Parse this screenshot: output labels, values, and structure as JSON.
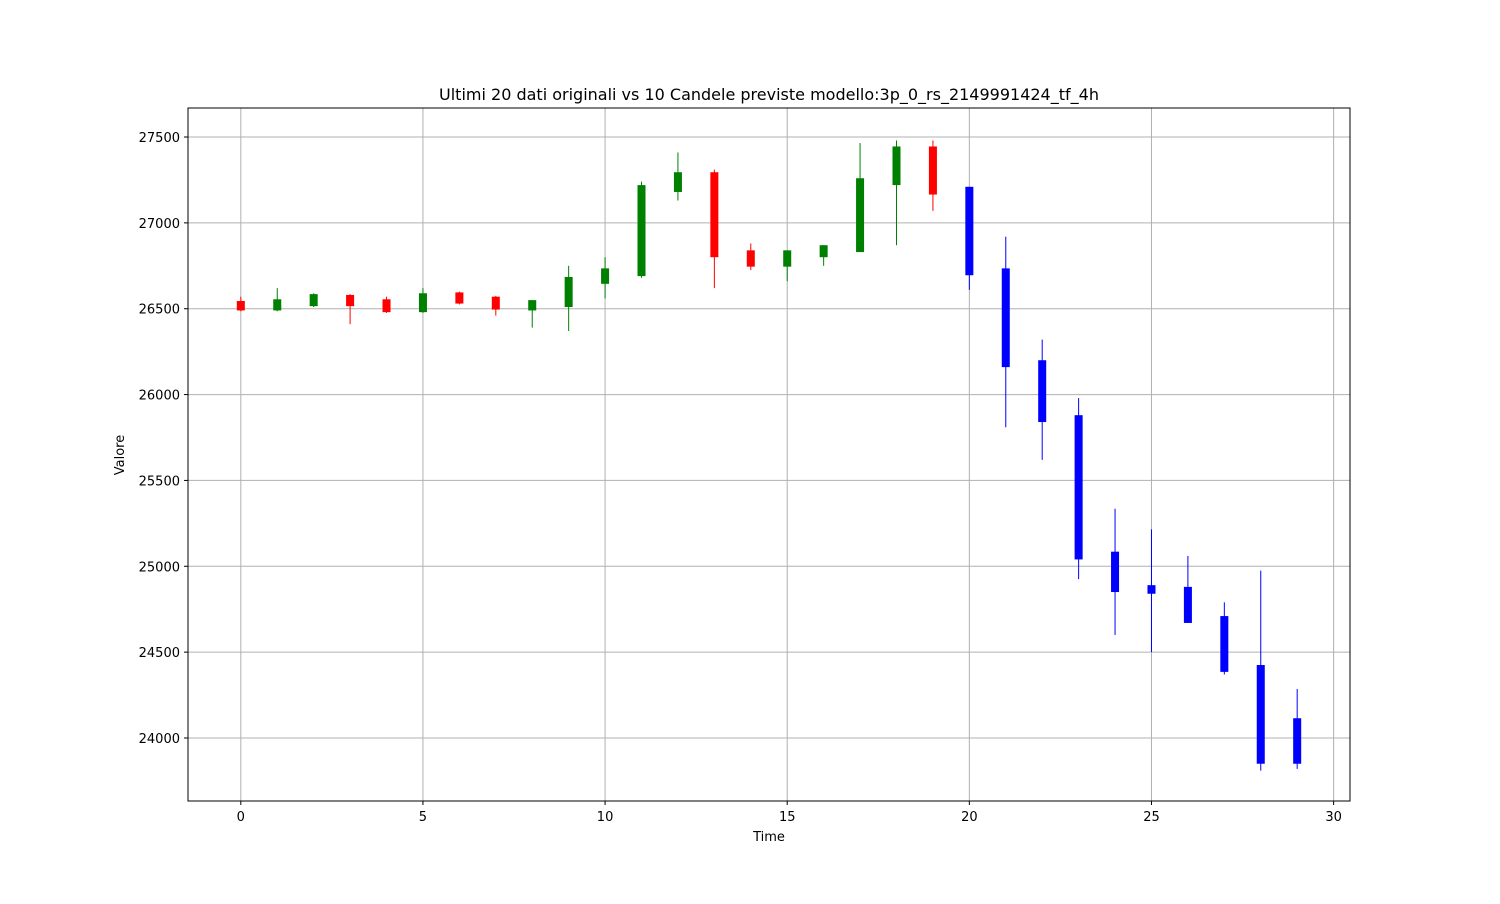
{
  "chart_data": {
    "type": "candlestick",
    "title": "Ultimi 20 dati originali vs 10 Candele previste modello:3p_0_rs_2149991424_tf_4h",
    "xlabel": "Time",
    "ylabel": "Valore",
    "x": [
      0,
      1,
      2,
      3,
      4,
      5,
      6,
      7,
      8,
      9,
      10,
      11,
      12,
      13,
      14,
      15,
      16,
      17,
      18,
      19,
      20,
      21,
      22,
      23,
      24,
      25,
      26,
      27,
      28,
      29
    ],
    "open": [
      26545,
      26490,
      26515,
      26580,
      26555,
      26480,
      26595,
      26570,
      26490,
      26510,
      26645,
      26690,
      27180,
      27295,
      26840,
      26745,
      26800,
      26830,
      27220,
      27445,
      27210,
      26735,
      26200,
      25880,
      25085,
      24890,
      24880,
      24710,
      24425,
      24115
    ],
    "high": [
      26570,
      26620,
      26590,
      26585,
      26570,
      26620,
      26600,
      26575,
      26550,
      26750,
      26800,
      27240,
      27410,
      27310,
      26880,
      26840,
      26870,
      27465,
      27480,
      27480,
      27210,
      26920,
      26320,
      25980,
      25335,
      25215,
      25060,
      24790,
      24975,
      24285
    ],
    "low": [
      26485,
      26485,
      26510,
      26410,
      26475,
      26475,
      26525,
      26460,
      26390,
      26370,
      26560,
      26680,
      27130,
      26620,
      26725,
      26660,
      26750,
      26830,
      26870,
      27070,
      26610,
      25810,
      25620,
      24925,
      24600,
      24500,
      24670,
      24370,
      23810,
      23820
    ],
    "close": [
      26490,
      26555,
      26585,
      26515,
      26480,
      26590,
      26530,
      26495,
      26550,
      26685,
      26735,
      27220,
      27295,
      26800,
      26745,
      26840,
      26870,
      27260,
      27445,
      27165,
      26695,
      26160,
      25840,
      25040,
      24850,
      24840,
      24670,
      24385,
      23850,
      23850
    ],
    "colors": [
      "red",
      "green",
      "green",
      "red",
      "red",
      "green",
      "red",
      "red",
      "green",
      "green",
      "green",
      "green",
      "green",
      "red",
      "red",
      "green",
      "green",
      "green",
      "green",
      "red",
      "blue",
      "blue",
      "blue",
      "blue",
      "blue",
      "blue",
      "blue",
      "blue",
      "blue",
      "blue"
    ],
    "xlim": [
      -1.45,
      30.45
    ],
    "ylim": [
      23633,
      27669
    ],
    "xticks": [
      0,
      5,
      10,
      15,
      20,
      25,
      30
    ],
    "yticks": [
      24000,
      24500,
      25000,
      25500,
      26000,
      26500,
      27000,
      27500
    ],
    "grid": true
  }
}
